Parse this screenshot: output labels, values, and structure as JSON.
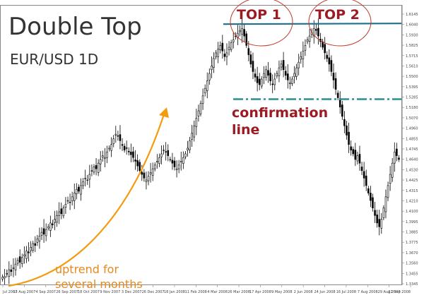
{
  "chart_data": {
    "type": "candlestick",
    "title": "Double Top",
    "subtitle": "EUR/USD 1D",
    "y_ticks": [
      "1.6145",
      "1.6040",
      "1.5930",
      "1.5825",
      "1.5715",
      "1.5610",
      "1.5500",
      "1.5395",
      "1.5285",
      "1.5180",
      "1.5070",
      "1.4960",
      "1.4855",
      "1.4745",
      "1.4640",
      "1.4530",
      "1.4425",
      "1.4315",
      "1.4210",
      "1.4100",
      "1.3995",
      "1.3885",
      "1.3775",
      "1.3670",
      "1.3560",
      "1.3455",
      "1.3345"
    ],
    "ylim": [
      1.33,
      1.62
    ],
    "x_ticks": [
      "Jul 2007",
      "13 Aug 2007",
      "4 Sep 2007",
      "26 Sep 2007",
      "18 Oct 2007",
      "9 Nov 2007",
      "3 Dec 2007",
      "26 Dec 2007",
      "18 Jan 2008",
      "11 Feb 2008",
      "4 Mar 2008",
      "26 Mar 2008",
      "17 Apr 2008",
      "9 May 2008",
      "2 Jun 2008",
      "24 Jun 2008",
      "16 Jul 2008",
      "7 Aug 2008",
      "29 Aug 2008",
      "22 Sep 2008"
    ],
    "resistance_level": 1.604,
    "confirmation_level": 1.5245,
    "candles": [
      1.334,
      1.335,
      1.338,
      1.342,
      1.34,
      1.344,
      1.348,
      1.352,
      1.35,
      1.355,
      1.358,
      1.362,
      1.36,
      1.366,
      1.37,
      1.368,
      1.375,
      1.378,
      1.382,
      1.38,
      1.385,
      1.388,
      1.392,
      1.39,
      1.396,
      1.4,
      1.404,
      1.402,
      1.408,
      1.412,
      1.416,
      1.414,
      1.42,
      1.424,
      1.428,
      1.426,
      1.432,
      1.436,
      1.44,
      1.438,
      1.444,
      1.448,
      1.452,
      1.45,
      1.456,
      1.46,
      1.464,
      1.462,
      1.468,
      1.472,
      1.476,
      1.482,
      1.487,
      1.485,
      1.48,
      1.475,
      1.47,
      1.472,
      1.468,
      1.465,
      1.462,
      1.458,
      1.453,
      1.448,
      1.444,
      1.44,
      1.438,
      1.442,
      1.446,
      1.45,
      1.454,
      1.458,
      1.462,
      1.466,
      1.47,
      1.468,
      1.464,
      1.46,
      1.456,
      1.452,
      1.45,
      1.454,
      1.458,
      1.462,
      1.466,
      1.472,
      1.48,
      1.488,
      1.496,
      1.504,
      1.512,
      1.52,
      1.528,
      1.536,
      1.544,
      1.552,
      1.56,
      1.568,
      1.574,
      1.578,
      1.582,
      1.576,
      1.57,
      1.574,
      1.58,
      1.585,
      1.588,
      1.592,
      1.595,
      1.598,
      1.6,
      1.592,
      1.582,
      1.572,
      1.562,
      1.554,
      1.548,
      1.542,
      1.54,
      1.546,
      1.552,
      1.556,
      1.55,
      1.544,
      1.54,
      1.546,
      1.552,
      1.558,
      1.562,
      1.556,
      1.55,
      1.545,
      1.542,
      1.546,
      1.552,
      1.558,
      1.564,
      1.57,
      1.576,
      1.582,
      1.588,
      1.592,
      1.596,
      1.6,
      1.598,
      1.592,
      1.586,
      1.58,
      1.574,
      1.568,
      1.562,
      1.554,
      1.545,
      1.535,
      1.526,
      1.516,
      1.506,
      1.496,
      1.486,
      1.476,
      1.47,
      1.466,
      1.46,
      1.464,
      1.456,
      1.448,
      1.44,
      1.432,
      1.424,
      1.416,
      1.408,
      1.4,
      1.392,
      1.388,
      1.396,
      1.408,
      1.42,
      1.432,
      1.444,
      1.456,
      1.468,
      1.464,
      1.46
    ]
  },
  "annotations": {
    "top1": "TOP 1",
    "top2": "TOP 2",
    "confirmation_line1": "confirmation",
    "confirmation_line2": "line",
    "uptrend_line1": "uptrend for",
    "uptrend_line2": "several months"
  },
  "colors": {
    "resistance": "#1f6f8b",
    "confirmation": "#2b8f95",
    "text_red": "#9c1b22",
    "top_circle": "#c0392b",
    "trend_arrow": "#f39c12",
    "candles": "#000000"
  }
}
